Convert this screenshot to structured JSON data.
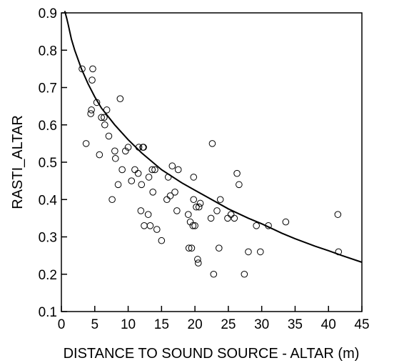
{
  "chart_data": {
    "type": "scatter",
    "title": "",
    "xlabel": "DISTANCE TO SOUND SOURCE - ALTAR (m)",
    "ylabel": "RASTI_ALTAR",
    "xlim": [
      0,
      45
    ],
    "ylim": [
      0.1,
      0.9
    ],
    "xticks": [
      "0",
      "5",
      "10",
      "15",
      "20",
      "25",
      "30",
      "35",
      "40",
      "45"
    ],
    "yticks": [
      "0.1",
      "0.2",
      "0.3",
      "0.4",
      "0.5",
      "0.6",
      "0.7",
      "0.8",
      "0.9"
    ],
    "grid": false,
    "legend": "none",
    "marker": "open-circle",
    "colors": {
      "points": "#000000",
      "curve": "#000000",
      "axes": "#000000",
      "background": "#ffffff"
    },
    "series": [
      {
        "kind": "points",
        "x": [
          3.1,
          3.7,
          4.4,
          4.5,
          4.7,
          4.6,
          5.3,
          5.7,
          6.0,
          6.4,
          6.5,
          6.8,
          7.1,
          7.6,
          8.0,
          8.1,
          8.5,
          8.8,
          9.1,
          9.6,
          10.0,
          10.5,
          11.0,
          11.5,
          11.6,
          11.9,
          12.0,
          12.2,
          12.4,
          12.3,
          13.0,
          13.1,
          13.3,
          13.6,
          13.7,
          14.0,
          14.3,
          15.0,
          15.8,
          16.0,
          16.3,
          16.6,
          17.0,
          17.3,
          17.5,
          19.0,
          19.1,
          19.3,
          19.5,
          19.7,
          19.8,
          19.8,
          20.0,
          20.2,
          20.4,
          20.5,
          20.6,
          20.8,
          22.4,
          22.6,
          22.8,
          23.3,
          23.6,
          23.8,
          24.9,
          25.4,
          25.9,
          26.3,
          26.6,
          27.4,
          28.0,
          29.2,
          29.8,
          31.0,
          33.6,
          41.4,
          41.5
        ],
        "y": [
          0.75,
          0.55,
          0.63,
          0.64,
          0.75,
          0.72,
          0.66,
          0.52,
          0.62,
          0.62,
          0.6,
          0.64,
          0.57,
          0.4,
          0.53,
          0.51,
          0.44,
          0.67,
          0.48,
          0.53,
          0.54,
          0.45,
          0.48,
          0.47,
          0.54,
          0.37,
          0.44,
          0.54,
          0.33,
          0.54,
          0.36,
          0.46,
          0.33,
          0.48,
          0.42,
          0.48,
          0.32,
          0.29,
          0.4,
          0.46,
          0.41,
          0.49,
          0.42,
          0.37,
          0.48,
          0.36,
          0.27,
          0.34,
          0.27,
          0.33,
          0.46,
          0.4,
          0.33,
          0.38,
          0.24,
          0.23,
          0.38,
          0.39,
          0.35,
          0.55,
          0.2,
          0.37,
          0.27,
          0.4,
          0.35,
          0.36,
          0.35,
          0.47,
          0.44,
          0.2,
          0.26,
          0.33,
          0.26,
          0.33,
          0.34,
          0.36,
          0.26
        ]
      },
      {
        "kind": "fit-curve",
        "x": [
          0.5,
          0.8,
          1,
          1.5,
          2,
          3,
          4,
          5,
          6,
          8,
          10,
          12,
          15,
          18,
          20,
          22,
          25,
          28,
          30,
          33,
          35,
          38,
          40,
          42,
          45
        ],
        "y": [
          0.905,
          0.885,
          0.87,
          0.83,
          0.8,
          0.75,
          0.71,
          0.675,
          0.645,
          0.6,
          0.56,
          0.525,
          0.48,
          0.445,
          0.425,
          0.405,
          0.375,
          0.35,
          0.335,
          0.31,
          0.295,
          0.275,
          0.263,
          0.25,
          0.232
        ]
      }
    ]
  }
}
